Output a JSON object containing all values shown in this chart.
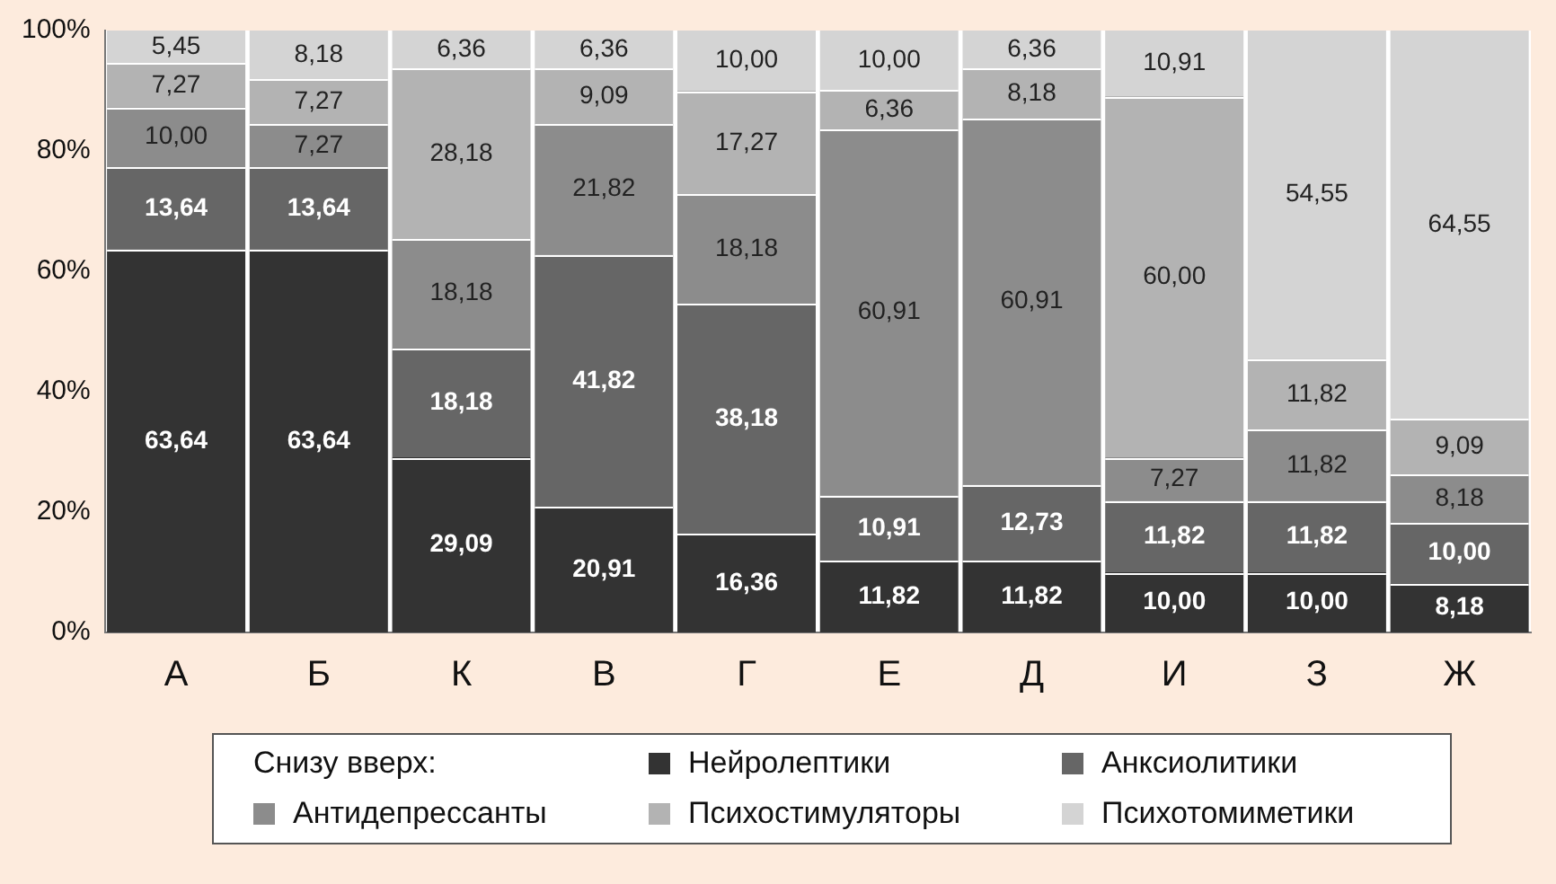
{
  "chart_data": {
    "type": "bar",
    "stacked": true,
    "categories": [
      "А",
      "Б",
      "К",
      "В",
      "Г",
      "Е",
      "Д",
      "И",
      "З",
      "Ж"
    ],
    "ylim": [
      0,
      100
    ],
    "yticks": [
      {
        "value": 0,
        "label": "0%"
      },
      {
        "value": 20,
        "label": "20%"
      },
      {
        "value": 40,
        "label": "40%"
      },
      {
        "value": 60,
        "label": "60%"
      },
      {
        "value": 80,
        "label": "80%"
      },
      {
        "value": 100,
        "label": "100%"
      }
    ],
    "grid": false,
    "legend": "bottom",
    "legend_title": "Снизу вверх:",
    "series": [
      {
        "name": "Нейролептики",
        "color": "#333333",
        "values": [
          63.64,
          63.64,
          29.09,
          20.91,
          16.36,
          11.82,
          11.82,
          10.0,
          10.0,
          8.18
        ],
        "value_labels": [
          "63,64",
          "63,64",
          "29,09",
          "20,91",
          "16,36",
          "11,82",
          "11,82",
          "10,00",
          "10,00",
          "8,18"
        ]
      },
      {
        "name": "Анксиолитики",
        "color": "#666666",
        "values": [
          13.64,
          13.64,
          18.18,
          41.82,
          38.18,
          10.91,
          12.73,
          11.82,
          11.82,
          10.0
        ],
        "value_labels": [
          "13,64",
          "13,64",
          "18,18",
          "41,82",
          "38,18",
          "10,91",
          "12,73",
          "11,82",
          "11,82",
          "10,00"
        ]
      },
      {
        "name": "Антидепрессанты",
        "color": "#8c8c8c",
        "values": [
          10.0,
          7.27,
          18.18,
          21.82,
          18.18,
          60.91,
          60.91,
          7.27,
          11.82,
          8.18
        ],
        "value_labels": [
          "10,00",
          "7,27",
          "18,18",
          "21,82",
          "18,18",
          "60,91",
          "60,91",
          "7,27",
          "11,82",
          "8,18"
        ]
      },
      {
        "name": "Психостимуляторы",
        "color": "#b3b3b3",
        "values": [
          7.27,
          7.27,
          28.18,
          9.09,
          17.27,
          6.36,
          8.18,
          60.0,
          11.82,
          9.09
        ],
        "value_labels": [
          "7,27",
          "7,27",
          "28,18",
          "9,09",
          "17,27",
          "6,36",
          "8,18",
          "60,00",
          "11,82",
          "9,09"
        ]
      },
      {
        "name": "Психотомиметики",
        "color": "#d4d4d4",
        "values": [
          5.45,
          8.18,
          6.36,
          6.36,
          10.0,
          10.0,
          6.36,
          10.91,
          54.55,
          64.55
        ],
        "value_labels": [
          "5,45",
          "8,18",
          "6,36",
          "6,36",
          "10,00",
          "10,00",
          "6,36",
          "10,91",
          "54,55",
          "64,55"
        ]
      }
    ]
  }
}
